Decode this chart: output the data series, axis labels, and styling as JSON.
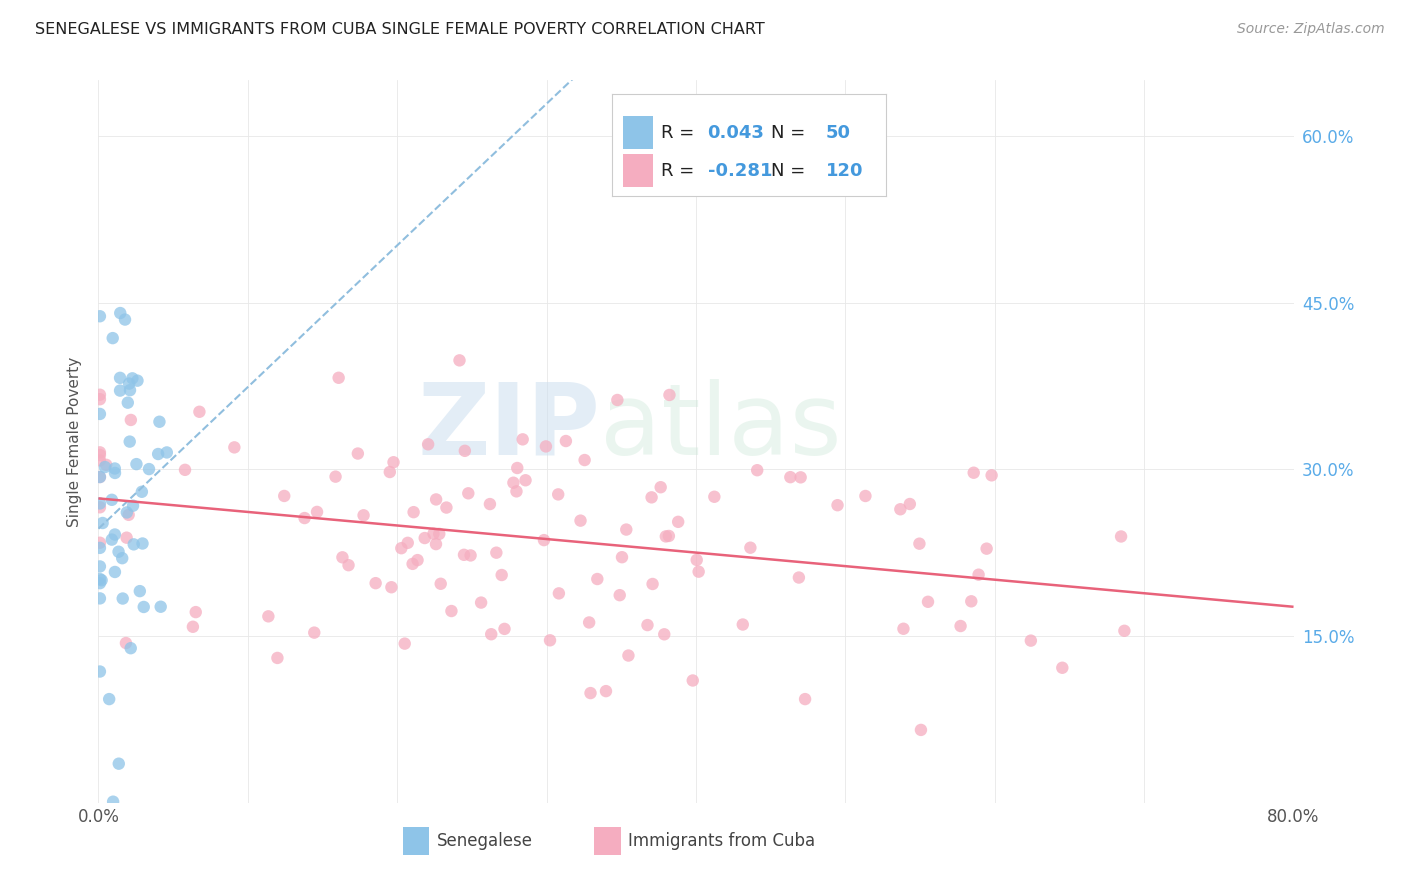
{
  "title": "SENEGALESE VS IMMIGRANTS FROM CUBA SINGLE FEMALE POVERTY CORRELATION CHART",
  "source": "Source: ZipAtlas.com",
  "ylabel": "Single Female Poverty",
  "ytick_labels": [
    "15.0%",
    "30.0%",
    "45.0%",
    "60.0%"
  ],
  "ytick_values": [
    0.15,
    0.3,
    0.45,
    0.6
  ],
  "xlim": [
    0.0,
    0.8
  ],
  "ylim": [
    0.0,
    0.65
  ],
  "blue_color": "#8ec4e8",
  "pink_color": "#f5adc0",
  "blue_line_color": "#90bede",
  "pink_line_color": "#e8627a",
  "title_color": "#333333",
  "source_color": "#999999",
  "watermark_zip": "ZIP",
  "watermark_atlas": "atlas",
  "blue_R": 0.043,
  "blue_N": 50,
  "pink_R": -0.281,
  "pink_N": 120,
  "blue_seed": 42,
  "pink_seed": 7,
  "legend_label_blue": "R = 0.043   N =  50",
  "legend_label_pink": "R = -0.281   N = 120",
  "legend_blue_R": "0.043",
  "legend_blue_N": "50",
  "legend_pink_R": "-0.281",
  "legend_pink_N": "120"
}
